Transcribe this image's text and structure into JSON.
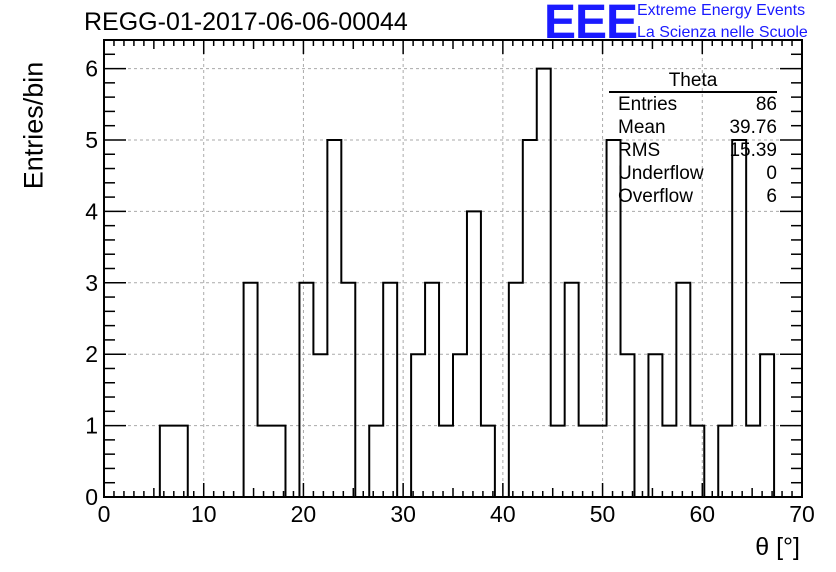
{
  "title": "REGG-01-2017-06-06-00044",
  "logo": {
    "mark": "EEE",
    "line1": "Extreme Energy Events",
    "line2": "La Scienza nelle Scuole",
    "color": "#1a1aff"
  },
  "stats": {
    "title": "Theta",
    "rows": [
      {
        "label": "Entries",
        "value": "86"
      },
      {
        "label": "Mean",
        "value": "39.76"
      },
      {
        "label": "RMS",
        "value": "15.39"
      },
      {
        "label": "Underflow",
        "value": "0"
      },
      {
        "label": "Overflow",
        "value": "6"
      }
    ]
  },
  "chart_data": {
    "type": "bar",
    "subtype": "step-histogram",
    "title": "REGG-01-2017-06-06-00044",
    "xlabel": "θ [°]",
    "ylabel": "Entries/bin",
    "xlim": [
      0,
      70
    ],
    "ylim": [
      0,
      6.4
    ],
    "grid": true,
    "x_ticks": [
      0,
      10,
      20,
      30,
      40,
      50,
      60,
      70
    ],
    "y_ticks": [
      0,
      1,
      2,
      3,
      4,
      5,
      6
    ],
    "bin_edges": [
      5.6,
      7.0,
      8.4,
      9.8,
      11.2,
      12.6,
      14.0,
      15.4,
      16.8,
      18.2,
      19.6,
      21.0,
      22.4,
      23.8,
      25.2,
      26.6,
      28.0,
      29.4,
      30.8,
      32.2,
      33.6,
      35.0,
      36.4,
      37.8,
      39.2,
      40.6,
      42.0,
      43.4,
      44.8,
      46.2,
      47.6,
      49.0,
      50.4,
      51.8,
      53.2,
      54.6,
      56.0,
      57.4,
      58.8,
      60.2,
      61.6,
      63.0,
      64.4,
      65.8,
      67.2
    ],
    "counts": [
      1,
      1,
      0,
      0,
      0,
      0,
      3,
      1,
      1,
      0,
      3,
      2,
      5,
      3,
      0,
      1,
      3,
      0,
      2,
      3,
      1,
      2,
      4,
      1,
      0,
      3,
      5,
      6,
      1,
      3,
      1,
      1,
      5,
      2,
      0,
      2,
      1,
      3,
      1,
      0,
      1,
      5,
      1,
      2
    ],
    "line_color": "#000000"
  }
}
